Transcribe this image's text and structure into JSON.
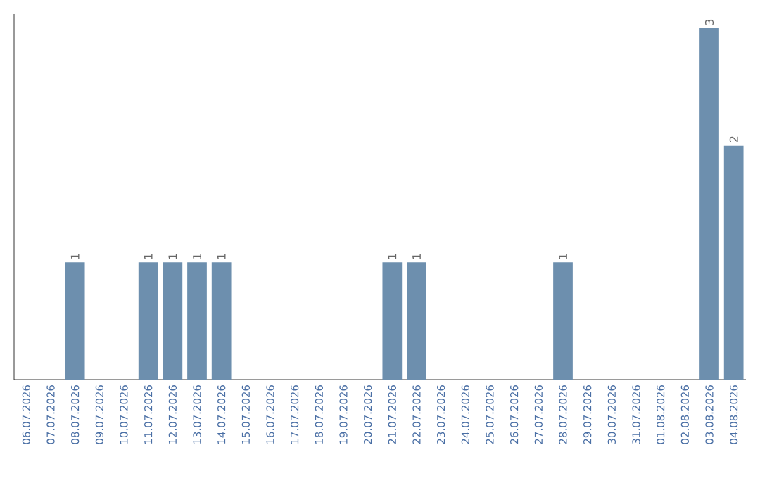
{
  "chart_data": {
    "type": "bar",
    "color": "#6d8fae",
    "categories": [
      "06.07.2026",
      "07.07.2026",
      "08.07.2026",
      "09.07.2026",
      "10.07.2026",
      "11.07.2026",
      "12.07.2026",
      "13.07.2026",
      "14.07.2026",
      "15.07.2026",
      "16.07.2026",
      "17.07.2026",
      "18.07.2026",
      "19.07.2026",
      "20.07.2026",
      "21.07.2026",
      "22.07.2026",
      "23.07.2026",
      "24.07.2026",
      "25.07.2026",
      "26.07.2026",
      "27.07.2026",
      "28.07.2026",
      "29.07.2026",
      "30.07.2026",
      "31.07.2026",
      "01.08.2026",
      "02.08.2026",
      "03.08.2026",
      "04.08.2026"
    ],
    "values": [
      0,
      0,
      1,
      0,
      0,
      1,
      1,
      1,
      1,
      0,
      0,
      0,
      0,
      0,
      0,
      1,
      1,
      0,
      0,
      0,
      0,
      0,
      1,
      0,
      0,
      0,
      0,
      0,
      3,
      2
    ],
    "value_labels": [
      null,
      null,
      "1",
      null,
      null,
      "1",
      "1",
      "1",
      "1",
      null,
      null,
      null,
      null,
      null,
      null,
      "1",
      "1",
      null,
      null,
      null,
      null,
      null,
      "1",
      null,
      null,
      null,
      null,
      null,
      "3",
      "2"
    ]
  }
}
